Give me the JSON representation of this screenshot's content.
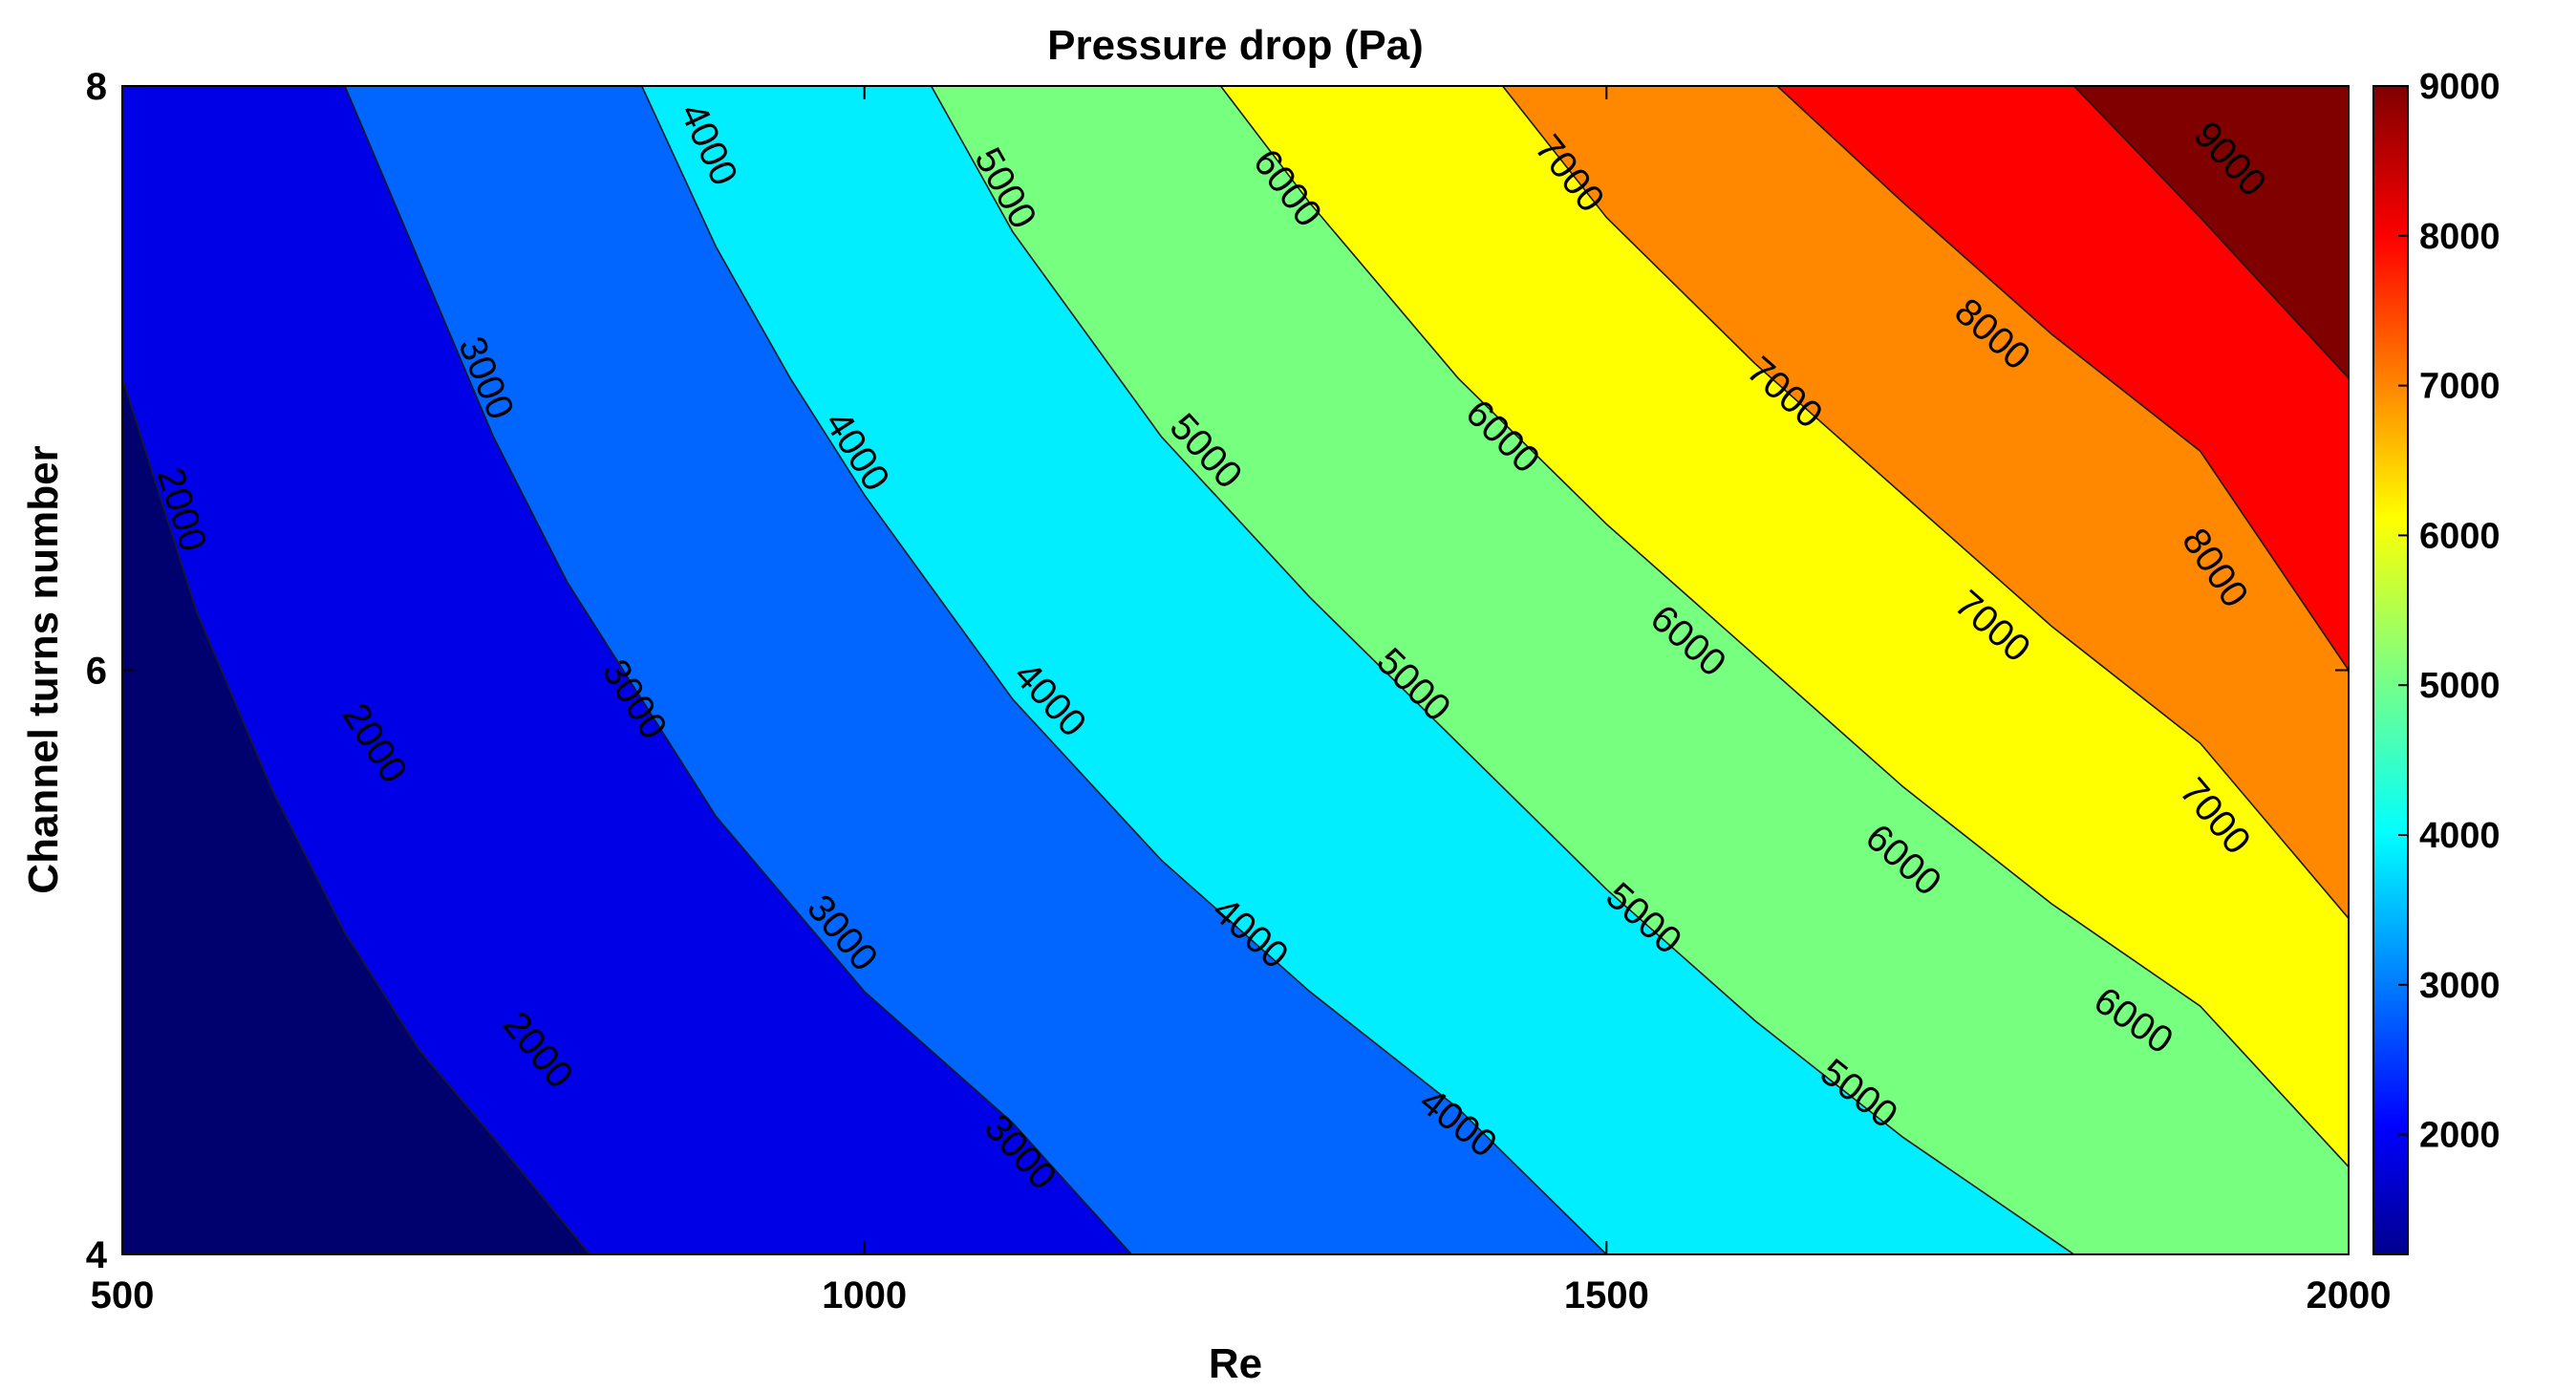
{
  "chart_data": {
    "type": "contour",
    "title": "Pressure drop (Pa)",
    "xlabel": "Re",
    "ylabel": "Channel turns number",
    "xlim": [
      500,
      2000
    ],
    "ylim": [
      4,
      8
    ],
    "xticks": [
      "500",
      "1000",
      "1500",
      "2000"
    ],
    "yticks": [
      "4",
      "6",
      "8"
    ],
    "colorbar": {
      "range": [
        1200,
        9000
      ],
      "ticks": [
        "2000",
        "3000",
        "4000",
        "5000",
        "6000",
        "7000",
        "8000",
        "9000"
      ]
    },
    "contour_levels": [
      2000,
      3000,
      4000,
      5000,
      6000,
      7000,
      8000,
      9000
    ],
    "level_colors": [
      "#00006e",
      "#0000e6",
      "#0066ff",
      "#00eeff",
      "#77ff80",
      "#ffff00",
      "#ff8800",
      "#ff0000",
      "#800000"
    ],
    "contours": [
      {
        "level": 2000,
        "points": [
          [
            500,
            7.0
          ],
          [
            550,
            6.2
          ],
          [
            600,
            5.6
          ],
          [
            650,
            5.1
          ],
          [
            700,
            4.7
          ],
          [
            750,
            4.4
          ],
          [
            815,
            4.0
          ]
        ]
      },
      {
        "level": 3000,
        "points": [
          [
            650,
            8.0
          ],
          [
            700,
            7.4
          ],
          [
            750,
            6.8
          ],
          [
            800,
            6.3
          ],
          [
            850,
            5.9
          ],
          [
            900,
            5.5
          ],
          [
            950,
            5.2
          ],
          [
            1000,
            4.9
          ],
          [
            1100,
            4.45
          ],
          [
            1180,
            4.0
          ]
        ]
      },
      {
        "level": 4000,
        "points": [
          [
            850,
            8.0
          ],
          [
            900,
            7.45
          ],
          [
            950,
            7.0
          ],
          [
            1000,
            6.6
          ],
          [
            1050,
            6.25
          ],
          [
            1100,
            5.9
          ],
          [
            1200,
            5.35
          ],
          [
            1300,
            4.9
          ],
          [
            1400,
            4.5
          ],
          [
            1500,
            4.0
          ]
        ]
      },
      {
        "level": 5000,
        "points": [
          [
            1045,
            8.0
          ],
          [
            1100,
            7.5
          ],
          [
            1200,
            6.8
          ],
          [
            1300,
            6.25
          ],
          [
            1400,
            5.75
          ],
          [
            1500,
            5.25
          ],
          [
            1600,
            4.8
          ],
          [
            1700,
            4.4
          ],
          [
            1815,
            4.0
          ]
        ]
      },
      {
        "level": 6000,
        "points": [
          [
            1240,
            8.0
          ],
          [
            1300,
            7.6
          ],
          [
            1400,
            7.0
          ],
          [
            1500,
            6.5
          ],
          [
            1600,
            6.05
          ],
          [
            1700,
            5.6
          ],
          [
            1800,
            5.2
          ],
          [
            1900,
            4.85
          ],
          [
            2000,
            4.3
          ]
        ]
      },
      {
        "level": 7000,
        "points": [
          [
            1430,
            8.0
          ],
          [
            1500,
            7.55
          ],
          [
            1600,
            7.05
          ],
          [
            1700,
            6.6
          ],
          [
            1800,
            6.15
          ],
          [
            1900,
            5.75
          ],
          [
            2000,
            5.15
          ]
        ]
      },
      {
        "level": 8000,
        "points": [
          [
            1615,
            8.0
          ],
          [
            1700,
            7.6
          ],
          [
            1800,
            7.15
          ],
          [
            1900,
            6.75
          ],
          [
            2000,
            6.0
          ]
        ]
      },
      {
        "level": 9000,
        "points": [
          [
            1815,
            8.0
          ],
          [
            1900,
            7.55
          ],
          [
            2000,
            7.0
          ]
        ]
      }
    ],
    "contour_labels": [
      {
        "text": "2000",
        "x": 540,
        "y": 6.55
      },
      {
        "text": "2000",
        "x": 670,
        "y": 5.75
      },
      {
        "text": "2000",
        "x": 780,
        "y": 4.7
      },
      {
        "text": "3000",
        "x": 745,
        "y": 7.0
      },
      {
        "text": "3000",
        "x": 845,
        "y": 5.9
      },
      {
        "text": "3000",
        "x": 985,
        "y": 5.1
      },
      {
        "text": "3000",
        "x": 1105,
        "y": 4.35
      },
      {
        "text": "4000",
        "x": 895,
        "y": 7.8
      },
      {
        "text": "4000",
        "x": 995,
        "y": 6.75
      },
      {
        "text": "4000",
        "x": 1125,
        "y": 5.9
      },
      {
        "text": "4000",
        "x": 1260,
        "y": 5.1
      },
      {
        "text": "4000",
        "x": 1400,
        "y": 4.45
      },
      {
        "text": "5000",
        "x": 1095,
        "y": 7.65
      },
      {
        "text": "5000",
        "x": 1230,
        "y": 6.75
      },
      {
        "text": "5000",
        "x": 1370,
        "y": 5.95
      },
      {
        "text": "5000",
        "x": 1525,
        "y": 5.15
      },
      {
        "text": "5000",
        "x": 1670,
        "y": 4.55
      },
      {
        "text": "6000",
        "x": 1285,
        "y": 7.65
      },
      {
        "text": "6000",
        "x": 1430,
        "y": 6.8
      },
      {
        "text": "6000",
        "x": 1555,
        "y": 6.1
      },
      {
        "text": "6000",
        "x": 1700,
        "y": 5.35
      },
      {
        "text": "6000",
        "x": 1855,
        "y": 4.8
      },
      {
        "text": "7000",
        "x": 1475,
        "y": 7.7
      },
      {
        "text": "7000",
        "x": 1620,
        "y": 6.95
      },
      {
        "text": "7000",
        "x": 1760,
        "y": 6.15
      },
      {
        "text": "7000",
        "x": 1910,
        "y": 5.5
      },
      {
        "text": "8000",
        "x": 1760,
        "y": 7.15
      },
      {
        "text": "8000",
        "x": 1910,
        "y": 6.35
      },
      {
        "text": "9000",
        "x": 1920,
        "y": 7.75
      }
    ]
  }
}
